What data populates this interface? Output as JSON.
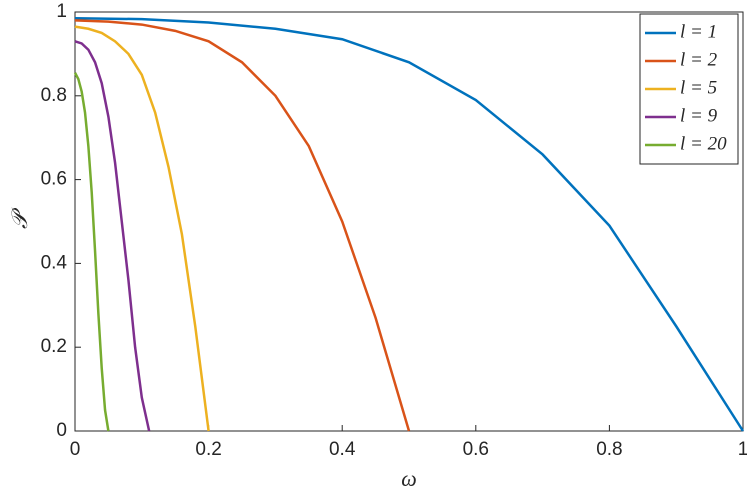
{
  "chart_data": {
    "type": "line",
    "xlabel": "ω",
    "ylabel": "𝒫",
    "xlim": [
      0,
      1
    ],
    "ylim": [
      0,
      1
    ],
    "xticks": [
      0,
      0.2,
      0.4,
      0.6,
      0.8,
      1
    ],
    "yticks": [
      0,
      0.2,
      0.4,
      0.6,
      0.8,
      1
    ],
    "legend": "upper right",
    "series": [
      {
        "name": "l = 1",
        "color": "#0072bd",
        "x": [
          0,
          0.1,
          0.2,
          0.3,
          0.4,
          0.5,
          0.6,
          0.7,
          0.8,
          0.9,
          1.0
        ],
        "values": [
          0.985,
          0.983,
          0.975,
          0.96,
          0.935,
          0.88,
          0.79,
          0.66,
          0.49,
          0.25,
          0
        ]
      },
      {
        "name": "l = 2",
        "color": "#d95319",
        "x": [
          0,
          0.05,
          0.1,
          0.15,
          0.2,
          0.25,
          0.3,
          0.35,
          0.4,
          0.45,
          0.5
        ],
        "values": [
          0.98,
          0.977,
          0.97,
          0.955,
          0.93,
          0.88,
          0.8,
          0.68,
          0.5,
          0.27,
          0
        ]
      },
      {
        "name": "l = 5",
        "color": "#edb120",
        "x": [
          0,
          0.02,
          0.04,
          0.06,
          0.08,
          0.1,
          0.12,
          0.14,
          0.16,
          0.18,
          0.2
        ],
        "values": [
          0.965,
          0.96,
          0.95,
          0.93,
          0.9,
          0.85,
          0.76,
          0.63,
          0.47,
          0.25,
          0
        ]
      },
      {
        "name": "l = 9",
        "color": "#7e2f8e",
        "x": [
          0,
          0.01,
          0.02,
          0.03,
          0.04,
          0.05,
          0.06,
          0.07,
          0.08,
          0.09,
          0.1,
          0.111
        ],
        "values": [
          0.93,
          0.925,
          0.91,
          0.88,
          0.83,
          0.75,
          0.64,
          0.5,
          0.36,
          0.2,
          0.08,
          0
        ]
      },
      {
        "name": "l = 20",
        "color": "#77ac30",
        "x": [
          0,
          0.005,
          0.01,
          0.015,
          0.02,
          0.025,
          0.03,
          0.035,
          0.04,
          0.045,
          0.05
        ],
        "values": [
          0.855,
          0.84,
          0.81,
          0.76,
          0.68,
          0.57,
          0.43,
          0.28,
          0.15,
          0.05,
          0
        ]
      }
    ]
  }
}
